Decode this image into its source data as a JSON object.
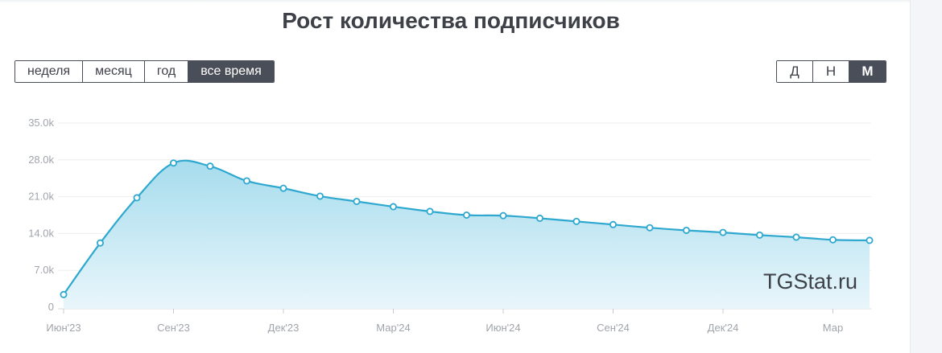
{
  "title": "Рост количества подписчиков",
  "period_buttons": [
    {
      "label": "неделя",
      "active": false
    },
    {
      "label": "месяц",
      "active": false
    },
    {
      "label": "год",
      "active": false
    },
    {
      "label": "все время",
      "active": true
    }
  ],
  "scale_buttons": [
    {
      "label": "Д",
      "active": false
    },
    {
      "label": "Н",
      "active": false
    },
    {
      "label": "М",
      "active": true
    }
  ],
  "watermark": "TGStat.ru",
  "colors": {
    "line": "#2ea8cf",
    "area_top": "#a6dced",
    "area_bottom": "#e9f6fb",
    "grid": "#eeeeee"
  },
  "chart_data": {
    "type": "area",
    "title": "Рост количества подписчиков",
    "xlabel": "",
    "ylabel": "",
    "ylim": [
      0,
      35000
    ],
    "y_ticks": [
      0,
      7000,
      14000,
      21000,
      28000,
      35000
    ],
    "y_tick_labels": [
      "0",
      "7.0k",
      "14.0k",
      "21.0k",
      "28.0k",
      "35.0k"
    ],
    "x_tick_labels": [
      "Июн'23",
      "Сен'23",
      "Дек'23",
      "Мар'24",
      "Июн'24",
      "Сен'24",
      "Дек'24",
      "Мар"
    ],
    "x_tick_positions": [
      0,
      3,
      6,
      9,
      12,
      15,
      18,
      21
    ],
    "grid": true,
    "series": [
      {
        "values": [
          2400,
          12200,
          20800,
          27400,
          26800,
          24000,
          22600,
          21100,
          20100,
          19100,
          18200,
          17500,
          17400,
          16900,
          16300,
          15700,
          15100,
          14600,
          14200,
          13700,
          13300,
          12800,
          12700
        ]
      }
    ]
  }
}
